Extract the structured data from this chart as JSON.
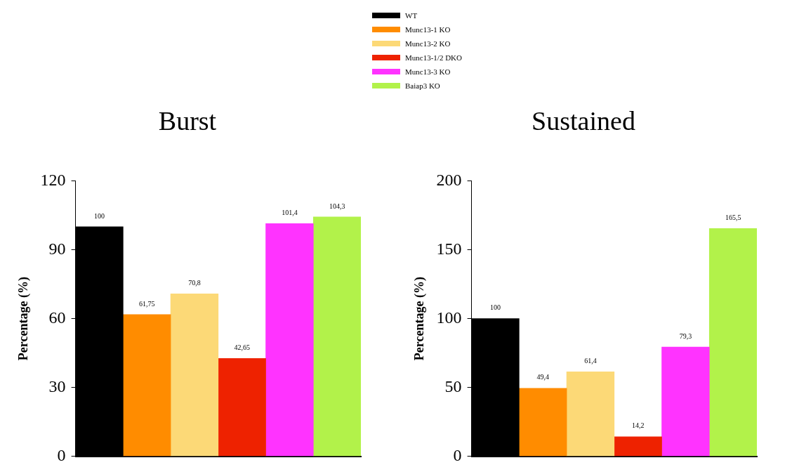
{
  "chart_data": [
    {
      "type": "bar",
      "title": "Burst",
      "ylabel": "Percentage (%)",
      "categories": [
        null
      ],
      "legend": "top",
      "ylim": [
        0,
        120
      ],
      "yticks": [
        0,
        30,
        60,
        90,
        120
      ],
      "grid": false,
      "series": [
        {
          "name": "WT",
          "color": "#000000",
          "values": [
            100
          ],
          "value_labels": [
            "100"
          ]
        },
        {
          "name": "Munc13-1 KO",
          "color": "#ff8c00",
          "values": [
            61.75
          ],
          "value_labels": [
            "61,75"
          ]
        },
        {
          "name": "Munc13-2 KO",
          "color": "#fcd977",
          "values": [
            70.8
          ],
          "value_labels": [
            "70,8"
          ]
        },
        {
          "name": "Munc13-1/2 DKO",
          "color": "#ee2200",
          "values": [
            42.65
          ],
          "value_labels": [
            "42,65"
          ]
        },
        {
          "name": "Munc13-3 KO",
          "color": "#ff33ff",
          "values": [
            101.4
          ],
          "value_labels": [
            "101,4"
          ]
        },
        {
          "name": "Baiap3 KO",
          "color": "#b2f24a",
          "values": [
            104.3
          ],
          "value_labels": [
            "104,3"
          ]
        }
      ]
    },
    {
      "type": "bar",
      "title": "Sustained",
      "ylabel": "Percentage (%)",
      "categories": [
        null
      ],
      "ylim": [
        0,
        200
      ],
      "yticks": [
        0,
        50,
        100,
        150,
        200
      ],
      "grid": false,
      "series": [
        {
          "color": "#000000",
          "values": [
            100
          ],
          "value_labels": [
            "100"
          ]
        },
        {
          "color": "#ff8c00",
          "values": [
            49.4
          ],
          "value_labels": [
            "49,4"
          ]
        },
        {
          "color": "#fcd977",
          "values": [
            61.4
          ],
          "value_labels": [
            "61,4"
          ]
        },
        {
          "color": "#ee2200",
          "values": [
            14.2
          ],
          "value_labels": [
            "14,2"
          ]
        },
        {
          "color": "#ff33ff",
          "values": [
            79.3
          ],
          "value_labels": [
            "79,3"
          ]
        },
        {
          "color": "#b2f24a",
          "values": [
            165.5
          ],
          "value_labels": [
            "165,5"
          ]
        }
      ]
    }
  ]
}
